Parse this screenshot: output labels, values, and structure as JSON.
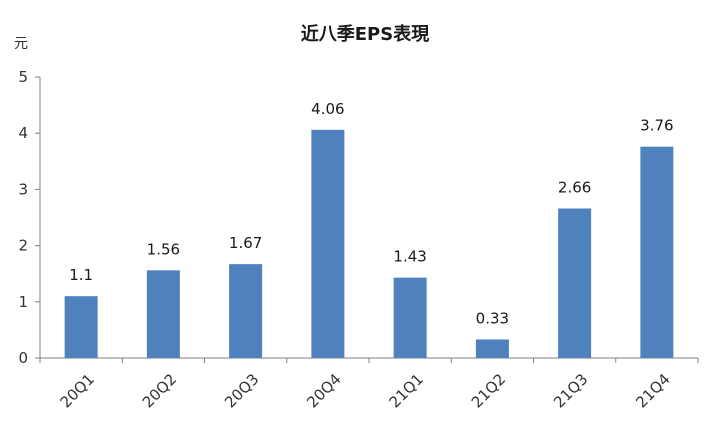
{
  "chart_data": {
    "type": "bar",
    "title": "近八季EPS表現",
    "ylabel": "元",
    "xlabel": "",
    "categories": [
      "20Q1",
      "20Q2",
      "20Q3",
      "20Q4",
      "21Q1",
      "21Q2",
      "21Q3",
      "21Q4"
    ],
    "values": [
      1.1,
      1.56,
      1.67,
      4.06,
      1.43,
      0.33,
      2.66,
      3.76
    ],
    "data_labels": [
      "1.1",
      "1.56",
      "1.67",
      "4.06",
      "1.43",
      "0.33",
      "2.66",
      "3.76"
    ],
    "ylim": [
      0,
      5
    ],
    "y_ticks": [
      "0",
      "1",
      "2",
      "3",
      "4",
      "5"
    ],
    "grid": false,
    "legend": "none",
    "bar_color": "#4F81BD"
  }
}
